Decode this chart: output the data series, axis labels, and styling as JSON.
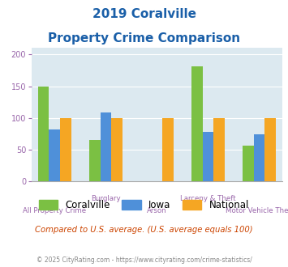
{
  "title_line1": "2019 Coralville",
  "title_line2": "Property Crime Comparison",
  "categories": [
    "All Property Crime",
    "Burglary",
    "Arson",
    "Larceny & Theft",
    "Motor Vehicle Theft"
  ],
  "series": {
    "Coralville": [
      149,
      65,
      0,
      181,
      56
    ],
    "Iowa": [
      82,
      109,
      0,
      78,
      74
    ],
    "National": [
      100,
      100,
      100,
      100,
      100
    ]
  },
  "colors": {
    "Coralville": "#7bc043",
    "Iowa": "#4f90d9",
    "National": "#f5a623"
  },
  "ylim": [
    0,
    210
  ],
  "yticks": [
    0,
    50,
    100,
    150,
    200
  ],
  "bar_width": 0.22,
  "bg_color": "#dce9f0",
  "footnote1": "Compared to U.S. average. (U.S. average equals 100)",
  "footnote2": "© 2025 CityRating.com - https://www.cityrating.com/crime-statistics/",
  "title_color": "#1a5fa8",
  "footnote1_color": "#cc4400",
  "footnote2_color": "#888888",
  "tick_color": "#9966aa",
  "grid_color": "#ffffff",
  "cat_labels_upper": [
    1,
    3
  ],
  "cat_labels_lower": [
    0,
    2,
    4
  ]
}
